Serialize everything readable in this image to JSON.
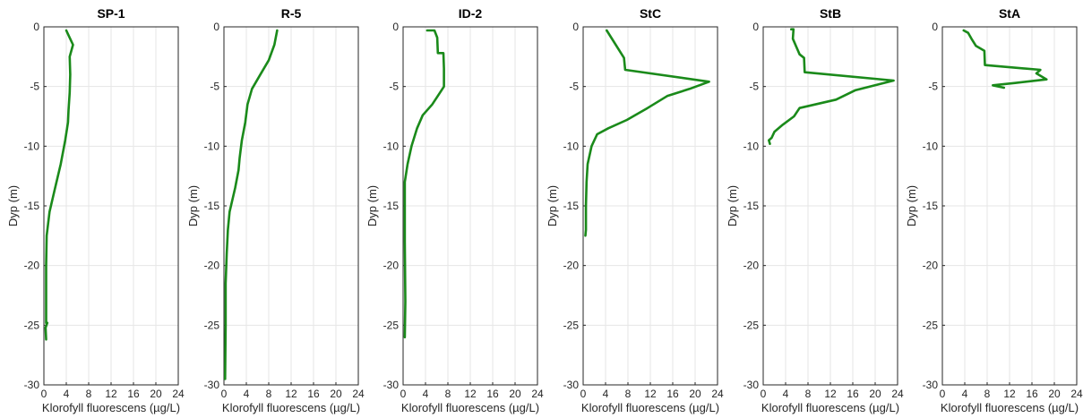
{
  "chart_data": [
    {
      "type": "line",
      "title": "SP-1",
      "xlabel": "Klorofyll fluorescens (µg/L)",
      "ylabel": "Dyp (m)",
      "xlim": [
        0,
        24
      ],
      "ylim": [
        -30,
        0
      ],
      "xticks": [
        "0",
        "4",
        "8",
        "12",
        "16",
        "20",
        "24"
      ],
      "yticks": [
        "0",
        "-5",
        "-10",
        "-15",
        "-20",
        "-25",
        "-30"
      ],
      "grid": true,
      "series": [
        {
          "color": "#1a8a1a",
          "x": [
            4.0,
            4.5,
            5.2,
            4.6,
            4.7,
            4.6,
            4.4,
            4.3,
            3.8,
            3.0,
            2.0,
            1.0,
            0.5,
            0.4,
            0.4,
            0.6,
            0.3,
            0.4
          ],
          "y": [
            -0.3,
            -0.8,
            -1.5,
            -2.5,
            -4.0,
            -5.5,
            -7.0,
            -8.0,
            -9.5,
            -11.5,
            -13.5,
            -15.5,
            -17.5,
            -20.0,
            -24.8,
            -24.8,
            -25.2,
            -26.2
          ]
        }
      ]
    },
    {
      "type": "line",
      "title": "R-5",
      "xlabel": "Klorofyll fluorescens (µg/L)",
      "ylabel": "Dyp (m)",
      "xlim": [
        0,
        24
      ],
      "ylim": [
        -30,
        0
      ],
      "xticks": [
        "0",
        "4",
        "8",
        "12",
        "16",
        "20",
        "24"
      ],
      "yticks": [
        "0",
        "-5",
        "-10",
        "-15",
        "-20",
        "-25",
        "-30"
      ],
      "grid": true,
      "series": [
        {
          "color": "#1a8a1a",
          "x": [
            9.5,
            9.0,
            8.0,
            6.5,
            5.0,
            4.2,
            3.8,
            3.2,
            2.8,
            2.6,
            2.0,
            1.0,
            0.7,
            0.5,
            0.3,
            0.3,
            0.2
          ],
          "y": [
            -0.3,
            -1.5,
            -2.8,
            -4.0,
            -5.2,
            -6.5,
            -8.0,
            -9.5,
            -11.0,
            -12.0,
            -13.5,
            -15.5,
            -17.0,
            -19.0,
            -21.5,
            -25.0,
            -29.5
          ]
        }
      ]
    },
    {
      "type": "line",
      "title": "ID-2",
      "xlabel": "Klorofyll fluorescens (µg/L)",
      "ylabel": "Dyp (m)",
      "xlim": [
        0,
        24
      ],
      "ylim": [
        -30,
        0
      ],
      "xticks": [
        "0",
        "4",
        "8",
        "12",
        "16",
        "20",
        "24"
      ],
      "yticks": [
        "0",
        "-5",
        "-10",
        "-15",
        "-20",
        "-25",
        "-30"
      ],
      "grid": true,
      "series": [
        {
          "color": "#1a8a1a",
          "x": [
            4.3,
            5.6,
            6.1,
            6.2,
            7.2,
            7.3,
            7.3,
            6.6,
            5.2,
            3.5,
            2.5,
            1.5,
            0.8,
            0.3,
            0.3,
            0.4,
            0.3
          ],
          "y": [
            -0.3,
            -0.3,
            -0.9,
            -2.2,
            -2.2,
            -3.5,
            -5.0,
            -5.5,
            -6.5,
            -7.4,
            -8.5,
            -10.0,
            -11.5,
            -13.0,
            -18.0,
            -23.0,
            -26.0
          ]
        }
      ]
    },
    {
      "type": "line",
      "title": "StC",
      "xlabel": "Klorofyll fluorescens (µg/L)",
      "ylabel": "Dyp (m)",
      "xlim": [
        0,
        24
      ],
      "ylim": [
        -30,
        0
      ],
      "xticks": [
        "0",
        "4",
        "8",
        "12",
        "16",
        "20",
        "24"
      ],
      "yticks": [
        "0",
        "-5",
        "-10",
        "-15",
        "-20",
        "-25",
        "-30"
      ],
      "grid": true,
      "series": [
        {
          "color": "#1a8a1a",
          "x": [
            4.2,
            7.3,
            7.5,
            22.5,
            19.0,
            15.0,
            11.5,
            7.8,
            4.5,
            2.5,
            1.5,
            0.8,
            0.6,
            0.5,
            0.5,
            0.4
          ],
          "y": [
            -0.3,
            -2.6,
            -3.6,
            -4.6,
            -5.2,
            -5.8,
            -6.8,
            -7.8,
            -8.5,
            -9.0,
            -10.0,
            -11.5,
            -13.0,
            -15.0,
            -17.0,
            -17.5
          ]
        }
      ]
    },
    {
      "type": "line",
      "title": "StB",
      "xlabel": "Klorofyll fluorescens (µg/L)",
      "ylabel": "Dyp (m)",
      "xlim": [
        0,
        24
      ],
      "ylim": [
        -30,
        0
      ],
      "xticks": [
        "0",
        "4",
        "8",
        "12",
        "16",
        "20",
        "24"
      ],
      "yticks": [
        "0",
        "-5",
        "-10",
        "-15",
        "-20",
        "-25",
        "-30"
      ],
      "grid": true,
      "series": [
        {
          "color": "#1a8a1a",
          "x": [
            5.0,
            5.4,
            5.3,
            6.5,
            7.3,
            7.4,
            23.3,
            16.5,
            13.0,
            6.5,
            5.5,
            3.5,
            2.0,
            1.5,
            1.0,
            1.2
          ],
          "y": [
            -0.2,
            -0.2,
            -1.0,
            -2.3,
            -2.6,
            -3.8,
            -4.5,
            -5.3,
            -6.1,
            -6.8,
            -7.5,
            -8.2,
            -8.8,
            -9.3,
            -9.5,
            -9.8
          ]
        }
      ]
    },
    {
      "type": "line",
      "title": "StA",
      "xlabel": "Klorofyll fluorescens (µg/L)",
      "ylabel": "Dyp (m)",
      "xlim": [
        0,
        24
      ],
      "ylim": [
        -30,
        0
      ],
      "xticks": [
        "0",
        "4",
        "8",
        "12",
        "16",
        "20",
        "24"
      ],
      "yticks": [
        "0",
        "-5",
        "-10",
        "-15",
        "-20",
        "-25",
        "-30"
      ],
      "grid": true,
      "series": [
        {
          "color": "#1a8a1a",
          "x": [
            3.8,
            4.6,
            5.2,
            6.0,
            7.5,
            7.6,
            17.5,
            16.8,
            18.6,
            13.0,
            9.0,
            11.0
          ],
          "y": [
            -0.3,
            -0.5,
            -1.0,
            -1.6,
            -2.0,
            -3.2,
            -3.6,
            -3.9,
            -4.4,
            -4.7,
            -4.9,
            -5.1
          ]
        }
      ]
    }
  ]
}
